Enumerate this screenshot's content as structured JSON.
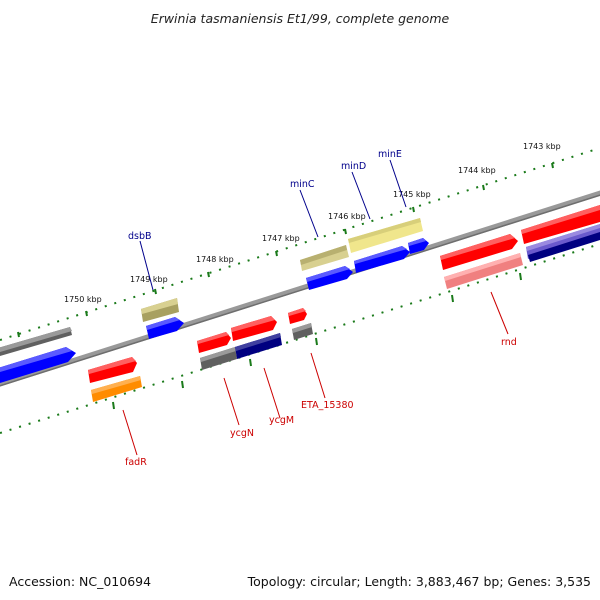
{
  "title": "Erwinia tasmaniensis Et1/99, complete genome",
  "footer": {
    "accession": "Accession: NC_010694",
    "summary": "Topology: circular; Length: 3,883,467 bp; Genes: 3,535"
  },
  "ticks": [
    "1743 kbp",
    "1744 kbp",
    "1745 kbp",
    "1746 kbp",
    "1747 kbp",
    "1748 kbp",
    "1749 kbp",
    "1750 kbp"
  ],
  "gene_labels": {
    "top": [
      "minE",
      "minD",
      "minC",
      "dsbB"
    ],
    "bottom": [
      "rnd",
      "ETA_15380",
      "ycgM",
      "ycgN",
      "fadR"
    ]
  },
  "colors": {
    "label_top": "#00008b",
    "label_bottom": "#cc0000",
    "tick": "#1a7a1a",
    "backbone": "#808080",
    "red": "#ff0000",
    "blue": "#0000ff",
    "navy": "#000080",
    "gray": "#606060",
    "khaki": "#b8b070",
    "lightkhaki": "#f0e68c",
    "orange": "#ff8c00",
    "pink": "#f08080",
    "slateblue": "#6a5acd"
  }
}
